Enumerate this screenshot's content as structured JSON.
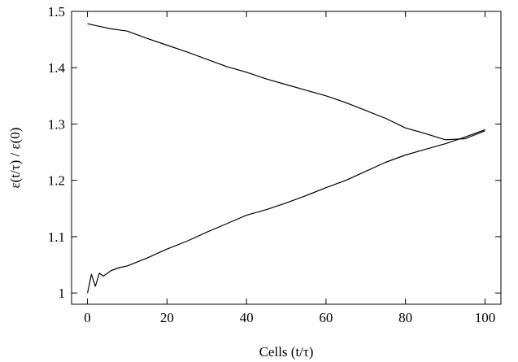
{
  "chart_data": {
    "type": "line",
    "xlabel": "Cells (t/τ)",
    "ylabel": "ε(t/τ) / ε(0)",
    "xlim": [
      -4,
      104
    ],
    "ylim": [
      0.98,
      1.5
    ],
    "x_ticks": [
      0,
      20,
      40,
      60,
      80,
      100
    ],
    "y_ticks": [
      1,
      1.1,
      1.2,
      1.3,
      1.4,
      1.5
    ],
    "x_tick_labels": [
      "0",
      "20",
      "40",
      "60",
      "80",
      "100"
    ],
    "y_tick_labels": [
      "1",
      "1.1",
      "1.2",
      "1.3",
      "1.4",
      "1.5"
    ],
    "grid": false,
    "line_color": "#000000",
    "series": [
      {
        "x": [
          0,
          2,
          4,
          6,
          8,
          10,
          15,
          20,
          25,
          30,
          35,
          40,
          45,
          50,
          55,
          60,
          65,
          70,
          75,
          80,
          85,
          90,
          95,
          100
        ],
        "values": [
          1.478,
          1.475,
          1.472,
          1.469,
          1.467,
          1.465,
          1.452,
          1.44,
          1.428,
          1.415,
          1.402,
          1.392,
          1.38,
          1.37,
          1.36,
          1.35,
          1.338,
          1.324,
          1.31,
          1.293,
          1.283,
          1.272,
          1.274,
          1.288
        ]
      },
      {
        "x": [
          0,
          1,
          2,
          3,
          4,
          6,
          8,
          10,
          15,
          20,
          25,
          30,
          35,
          40,
          45,
          50,
          55,
          60,
          65,
          70,
          75,
          80,
          85,
          90,
          95,
          100
        ],
        "values": [
          1.0,
          1.033,
          1.012,
          1.035,
          1.03,
          1.04,
          1.045,
          1.048,
          1.062,
          1.078,
          1.092,
          1.108,
          1.123,
          1.138,
          1.148,
          1.16,
          1.173,
          1.187,
          1.2,
          1.216,
          1.232,
          1.245,
          1.255,
          1.265,
          1.277,
          1.29
        ]
      }
    ]
  }
}
